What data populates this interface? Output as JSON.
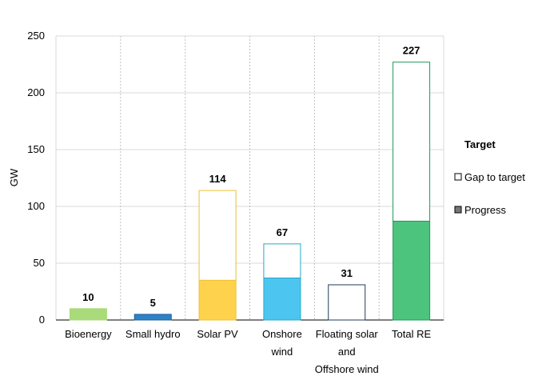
{
  "chart_data": {
    "type": "bar",
    "stacked": true,
    "ylabel": "GW",
    "ylim": [
      0,
      250
    ],
    "yticks": [
      0,
      50,
      100,
      150,
      200,
      250
    ],
    "grid": true,
    "categories": [
      [
        "Bioenergy"
      ],
      [
        "Small hydro"
      ],
      [
        "Solar PV"
      ],
      [
        "Onshore",
        "wind"
      ],
      [
        "Floating solar",
        "and",
        "Offshore wind"
      ],
      [
        "Total RE"
      ]
    ],
    "colors": [
      "#a9db7a",
      "#2e83c6",
      "#ffd24d",
      "#4cc6f0",
      "#ffffff",
      "#4cc47e"
    ],
    "outline_colors": [
      "#a9db7a",
      "#1f5f9c",
      "#f0c030",
      "#26a8c8",
      "#1f3b5c",
      "#1e9a57"
    ],
    "series": [
      {
        "name": "Progress",
        "values": [
          10,
          5,
          35,
          37,
          0,
          87
        ]
      },
      {
        "name": "Gap to target",
        "values": [
          0,
          0,
          79,
          30,
          31,
          140
        ]
      }
    ],
    "totals": [
      10,
      5,
      114,
      67,
      31,
      227
    ],
    "legend": {
      "title": "Target",
      "placement": "right",
      "items": [
        "Gap to target",
        "Progress"
      ]
    }
  }
}
